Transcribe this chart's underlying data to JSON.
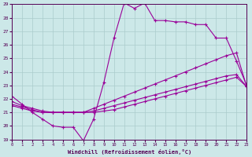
{
  "xlabel": "Windchill (Refroidissement éolien,°C)",
  "ylabel": "",
  "bg_color": "#cce8e8",
  "grid_color": "#aacccc",
  "line_color": "#990099",
  "xlim": [
    0,
    23
  ],
  "ylim": [
    19,
    29
  ],
  "xticks": [
    0,
    1,
    2,
    3,
    4,
    5,
    6,
    7,
    8,
    9,
    10,
    11,
    12,
    13,
    14,
    15,
    16,
    17,
    18,
    19,
    20,
    21,
    22,
    23
  ],
  "yticks": [
    19,
    20,
    21,
    22,
    23,
    24,
    25,
    26,
    27,
    28,
    29
  ],
  "curve1_x": [
    0,
    1,
    2,
    3,
    4,
    5,
    6,
    7,
    8,
    9,
    10,
    11,
    12,
    13,
    14,
    15,
    16,
    17,
    18,
    19,
    20,
    21,
    22,
    23
  ],
  "curve1_y": [
    22.2,
    21.6,
    21.0,
    20.5,
    20.0,
    19.9,
    19.9,
    18.9,
    20.5,
    23.2,
    26.5,
    29.1,
    28.7,
    29.1,
    27.8,
    27.8,
    27.7,
    27.7,
    27.5,
    27.5,
    26.5,
    26.5,
    24.8,
    23.0
  ],
  "curve2_x": [
    0,
    1,
    2,
    3,
    4,
    5,
    6,
    7,
    8,
    9,
    10,
    11,
    12,
    13,
    14,
    15,
    16,
    17,
    18,
    19,
    20,
    21,
    22,
    23
  ],
  "curve2_y": [
    21.8,
    21.5,
    21.3,
    21.1,
    21.0,
    21.0,
    21.0,
    21.0,
    21.3,
    21.6,
    21.9,
    22.2,
    22.5,
    22.8,
    23.1,
    23.4,
    23.7,
    24.0,
    24.3,
    24.6,
    24.9,
    25.2,
    25.4,
    22.9
  ],
  "curve3_x": [
    0,
    1,
    2,
    3,
    4,
    5,
    6,
    7,
    8,
    9,
    10,
    11,
    12,
    13,
    14,
    15,
    16,
    17,
    18,
    19,
    20,
    21,
    22,
    23
  ],
  "curve3_y": [
    21.6,
    21.4,
    21.2,
    21.0,
    21.0,
    21.0,
    21.0,
    21.0,
    21.1,
    21.3,
    21.5,
    21.7,
    21.9,
    22.1,
    22.3,
    22.5,
    22.7,
    22.9,
    23.1,
    23.3,
    23.5,
    23.7,
    23.8,
    22.9
  ],
  "curve4_x": [
    0,
    1,
    2,
    3,
    4,
    5,
    6,
    7,
    8,
    9,
    10,
    11,
    12,
    13,
    14,
    15,
    16,
    17,
    18,
    19,
    20,
    21,
    22,
    23
  ],
  "curve4_y": [
    21.5,
    21.3,
    21.1,
    21.0,
    21.0,
    21.0,
    21.0,
    21.0,
    21.0,
    21.1,
    21.2,
    21.4,
    21.6,
    21.8,
    22.0,
    22.2,
    22.4,
    22.6,
    22.8,
    23.0,
    23.2,
    23.4,
    23.6,
    22.9
  ]
}
